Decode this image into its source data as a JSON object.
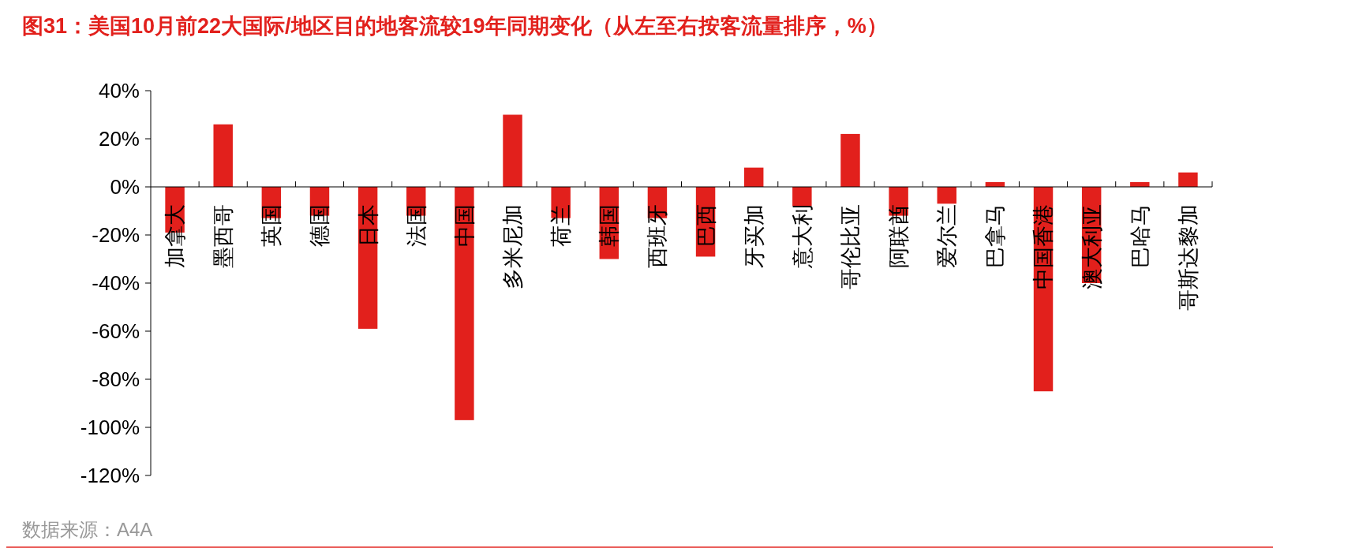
{
  "chart_data": {
    "type": "bar",
    "title": "图31：美国10月前22大国际/地区目的地客流较19年同期变化（从左至右按客流量排序，%）",
    "categories": [
      "加拿大",
      "墨西哥",
      "英国",
      "德国",
      "日本",
      "法国",
      "中国",
      "多米尼加",
      "荷兰",
      "韩国",
      "西班牙",
      "巴西",
      "牙买加",
      "意大利",
      "哥伦比亚",
      "阿联酋",
      "爱尔兰",
      "巴拿马",
      "中国香港",
      "澳大利亚",
      "巴哈马",
      "哥斯达黎加"
    ],
    "values": [
      -19,
      26,
      -13,
      -12,
      -59,
      -12,
      -97,
      30,
      -13,
      -30,
      -13,
      -29,
      8,
      -8,
      22,
      -12,
      -7,
      2,
      -85,
      -40,
      2,
      6
    ],
    "color": "#e2201c",
    "ylim": [
      -120,
      40
    ],
    "yticks": [
      {
        "value": 40,
        "label": "40%"
      },
      {
        "value": 20,
        "label": "20%"
      },
      {
        "value": 0,
        "label": "0%"
      },
      {
        "value": -20,
        "label": "-20%"
      },
      {
        "value": -40,
        "label": "-40%"
      },
      {
        "value": -60,
        "label": "-60%"
      },
      {
        "value": -80,
        "label": "-80%"
      },
      {
        "value": -100,
        "label": "-100%"
      },
      {
        "value": -120,
        "label": "-120%"
      }
    ],
    "grid": false,
    "annotations": [
      "数据来源：A4A"
    ]
  }
}
